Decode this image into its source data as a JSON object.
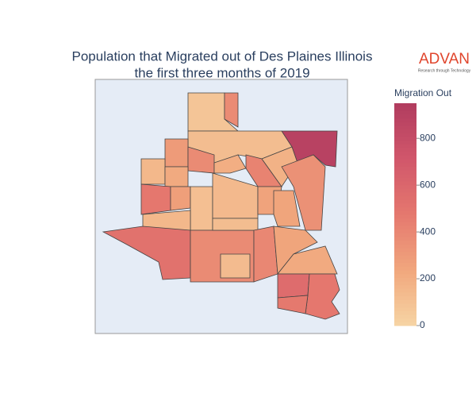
{
  "chart_data": {
    "type": "choropleth",
    "title": [
      "Population that Migrated out of Des Plaines Illinois",
      "the first three months of 2019"
    ],
    "logo": {
      "name": "ADVAN",
      "tagline": "Research through Technology"
    },
    "colorbar_title": "Migration Out",
    "colorscale": [
      "#f6d4a4",
      "#f1a77d",
      "#e5786e",
      "#d1576b",
      "#b13c5f"
    ],
    "clim": [
      0,
      950
    ],
    "cticks": [
      0,
      200,
      400,
      600,
      800
    ],
    "values": [
      80,
      380,
      900,
      120,
      300,
      380,
      150,
      220,
      200,
      420,
      180,
      350,
      480,
      280,
      110,
      140,
      260,
      250,
      150,
      520,
      380,
      120,
      400,
      250,
      220,
      560,
      480,
      470,
      130
    ]
  }
}
